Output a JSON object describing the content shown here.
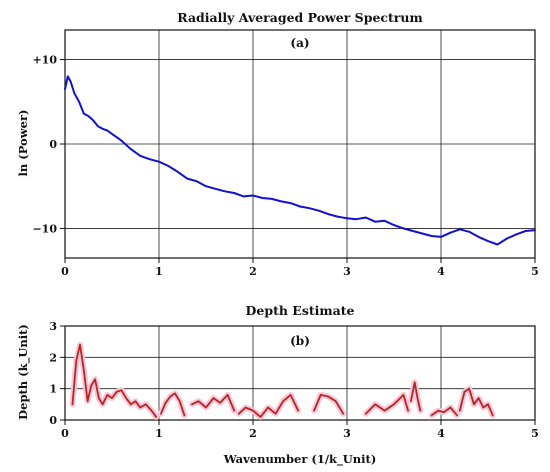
{
  "chart_data": [
    {
      "type": "line",
      "title": "Radially Averaged Power Spectrum",
      "panel_label": "(a)",
      "xlabel": "",
      "ylabel": "ln (Power)",
      "xlim": [
        0,
        5
      ],
      "ylim": [
        -13.5,
        13.5
      ],
      "xticks": [
        0,
        1,
        2,
        3,
        4,
        5
      ],
      "yticks": [
        10,
        0,
        -10
      ],
      "ytick_labels": [
        "+10",
        "0",
        "−10"
      ],
      "grid": true,
      "series": [
        {
          "color": "#1010d8",
          "x": [
            0.0,
            0.03,
            0.06,
            0.1,
            0.15,
            0.2,
            0.25,
            0.3,
            0.35,
            0.4,
            0.45,
            0.5,
            0.6,
            0.7,
            0.8,
            0.9,
            1.0,
            1.1,
            1.2,
            1.3,
            1.4,
            1.5,
            1.6,
            1.7,
            1.8,
            1.9,
            2.0,
            2.1,
            2.2,
            2.3,
            2.4,
            2.5,
            2.6,
            2.7,
            2.8,
            2.9,
            3.0,
            3.1,
            3.2,
            3.3,
            3.4,
            3.5,
            3.6,
            3.7,
            3.8,
            3.9,
            4.0,
            4.1,
            4.2,
            4.3,
            4.4,
            4.5,
            4.6,
            4.7,
            4.8,
            4.9,
            5.0
          ],
          "y": [
            6.5,
            8.0,
            7.4,
            6.0,
            5.0,
            3.6,
            3.3,
            2.8,
            2.1,
            1.8,
            1.6,
            1.2,
            0.4,
            -0.6,
            -1.4,
            -1.8,
            -2.1,
            -2.6,
            -3.3,
            -4.1,
            -4.4,
            -5.0,
            -5.3,
            -5.6,
            -5.8,
            -6.2,
            -6.1,
            -6.4,
            -6.5,
            -6.8,
            -7.0,
            -7.4,
            -7.6,
            -7.9,
            -8.3,
            -8.6,
            -8.8,
            -8.9,
            -8.7,
            -9.2,
            -9.1,
            -9.6,
            -10.0,
            -10.3,
            -10.6,
            -10.9,
            -11.0,
            -10.5,
            -10.1,
            -10.4,
            -11.0,
            -11.5,
            -11.9,
            -11.2,
            -10.7,
            -10.3,
            -10.2
          ]
        }
      ]
    },
    {
      "type": "line",
      "title": "Depth Estimate",
      "panel_label": "(b)",
      "xlabel": "Wavenumber (1/k_Unit)",
      "ylabel": "Depth (k_Unit)",
      "xlim": [
        0,
        5
      ],
      "ylim": [
        0,
        3
      ],
      "xticks": [
        0,
        1,
        2,
        3,
        4,
        5
      ],
      "yticks": [
        0,
        1,
        2,
        3
      ],
      "grid": true,
      "series": [
        {
          "color": "#c0221a",
          "halo_color": "#f3c8dc",
          "segments": [
            {
              "x": [
                0.08,
                0.12,
                0.16,
                0.2,
                0.24,
                0.28,
                0.32,
                0.36,
                0.4,
                0.45,
                0.5,
                0.55,
                0.6,
                0.65,
                0.7,
                0.75,
                0.8,
                0.86,
                0.92,
                0.97
              ],
              "y": [
                0.5,
                1.9,
                2.4,
                1.6,
                0.6,
                1.1,
                1.3,
                0.7,
                0.5,
                0.8,
                0.7,
                0.9,
                0.95,
                0.7,
                0.5,
                0.6,
                0.4,
                0.5,
                0.3,
                0.1
              ]
            },
            {
              "x": [
                1.02,
                1.07,
                1.12,
                1.17,
                1.22,
                1.27
              ],
              "y": [
                0.2,
                0.55,
                0.75,
                0.85,
                0.6,
                0.15
              ]
            },
            {
              "x": [
                1.35,
                1.42,
                1.5,
                1.58,
                1.65,
                1.73,
                1.8
              ],
              "y": [
                0.5,
                0.6,
                0.4,
                0.7,
                0.55,
                0.8,
                0.3
              ]
            },
            {
              "x": [
                1.85,
                1.92,
                2.0,
                2.08,
                2.16,
                2.24,
                2.32,
                2.4,
                2.48
              ],
              "y": [
                0.2,
                0.4,
                0.3,
                0.1,
                0.4,
                0.2,
                0.6,
                0.8,
                0.3
              ]
            },
            {
              "x": [
                2.65,
                2.72,
                2.8,
                2.88,
                2.96
              ],
              "y": [
                0.3,
                0.8,
                0.75,
                0.6,
                0.2
              ]
            },
            {
              "x": [
                3.2,
                3.3,
                3.4,
                3.5,
                3.6,
                3.65
              ],
              "y": [
                0.2,
                0.5,
                0.3,
                0.5,
                0.8,
                0.3
              ]
            },
            {
              "x": [
                3.68,
                3.72,
                3.75,
                3.78
              ],
              "y": [
                0.6,
                1.2,
                0.7,
                0.3
              ]
            },
            {
              "x": [
                3.9,
                3.97,
                4.03,
                4.1,
                4.17
              ],
              "y": [
                0.15,
                0.3,
                0.25,
                0.4,
                0.15
              ]
            },
            {
              "x": [
                4.2,
                4.25,
                4.3,
                4.35,
                4.4,
                4.45,
                4.5,
                4.55
              ],
              "y": [
                0.3,
                0.9,
                1.0,
                0.5,
                0.7,
                0.4,
                0.5,
                0.15
              ]
            }
          ]
        }
      ]
    }
  ]
}
